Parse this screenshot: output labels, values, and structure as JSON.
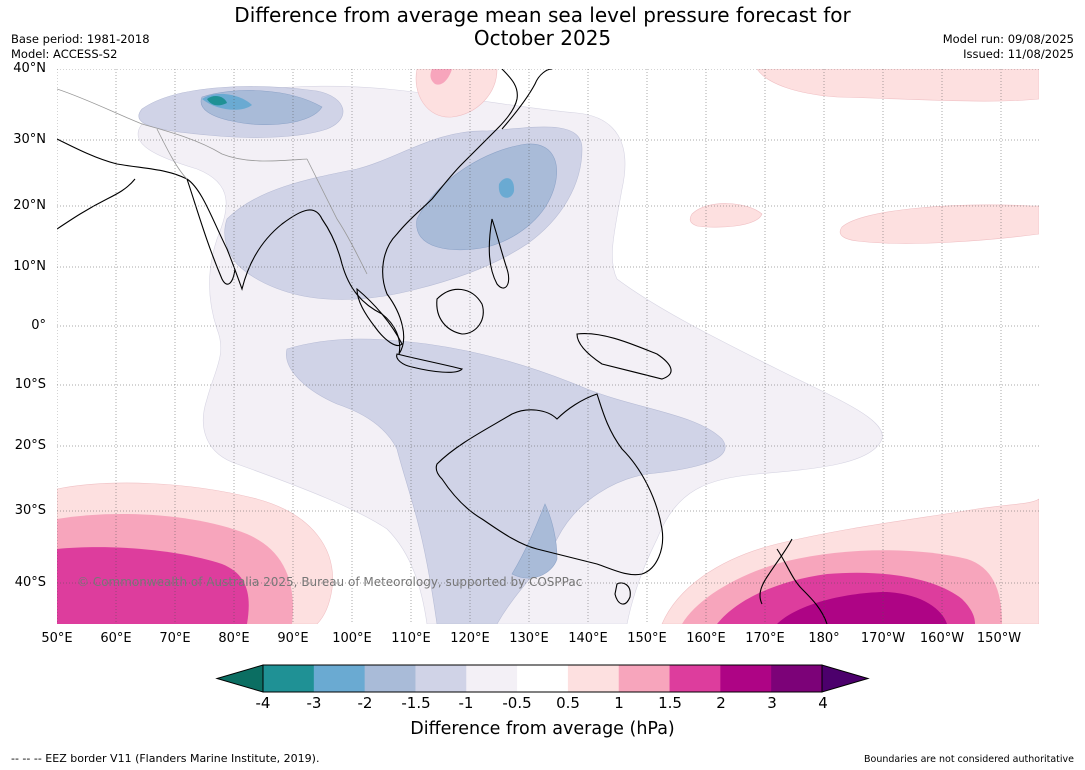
{
  "title_line1": "Difference from average mean sea level pressure forecast for",
  "title_line2": "October 2025",
  "base_period": "Base period: 1981-2018",
  "model": "Model: ACCESS-S2",
  "model_run": "Model run: 09/08/2025",
  "issued": "Issued: 11/08/2025",
  "copyright": "© Commonwealth of Australia 2025, Bureau of Meteorology, supported by COSPPac",
  "lat_labels": [
    "40°N",
    "30°N",
    "20°N",
    "10°N",
    "0°",
    "10°S",
    "20°S",
    "30°S",
    "40°S"
  ],
  "lon_labels": [
    "50°E",
    "60°E",
    "70°E",
    "80°E",
    "90°E",
    "100°E",
    "110°E",
    "120°E",
    "130°E",
    "140°E",
    "150°E",
    "160°E",
    "170°E",
    "180°",
    "170°W",
    "160°W",
    "150°W"
  ],
  "colorbar": {
    "title": "Difference from average (hPa)",
    "ticks": [
      "-4",
      "-3",
      "-2",
      "-1.5",
      "-1",
      "-0.5",
      "0.5",
      "1",
      "1.5",
      "2",
      "3",
      "4"
    ],
    "colors": [
      "#0b6e62",
      "#1f9195",
      "#6aaad2",
      "#a9bbd8",
      "#d0d3e7",
      "#f3f0f6",
      "#ffffff",
      "#fde0e0",
      "#f7a5bc",
      "#dd3d9d",
      "#ae0485",
      "#7c0278",
      "#4c006c"
    ]
  },
  "footer_left": "--  --  -- EEZ border V11 (Flanders Marine Institute, 2019).",
  "footer_right": "Boundaries are not considered authoritative"
}
